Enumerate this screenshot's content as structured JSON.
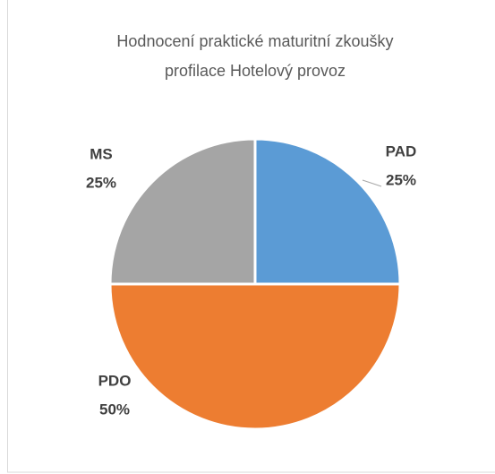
{
  "chart_data": {
    "type": "pie",
    "title": [
      "Hodnocení praktické maturitní zkoušky",
      "profilace Hotelový provoz"
    ],
    "categories": [
      "PAD",
      "PDO",
      "MS"
    ],
    "values": [
      25,
      50,
      25
    ],
    "value_labels": [
      "25%",
      "50%",
      "25%"
    ],
    "colors": [
      "#5b9bd5",
      "#ed7d31",
      "#a5a5a5"
    ]
  }
}
